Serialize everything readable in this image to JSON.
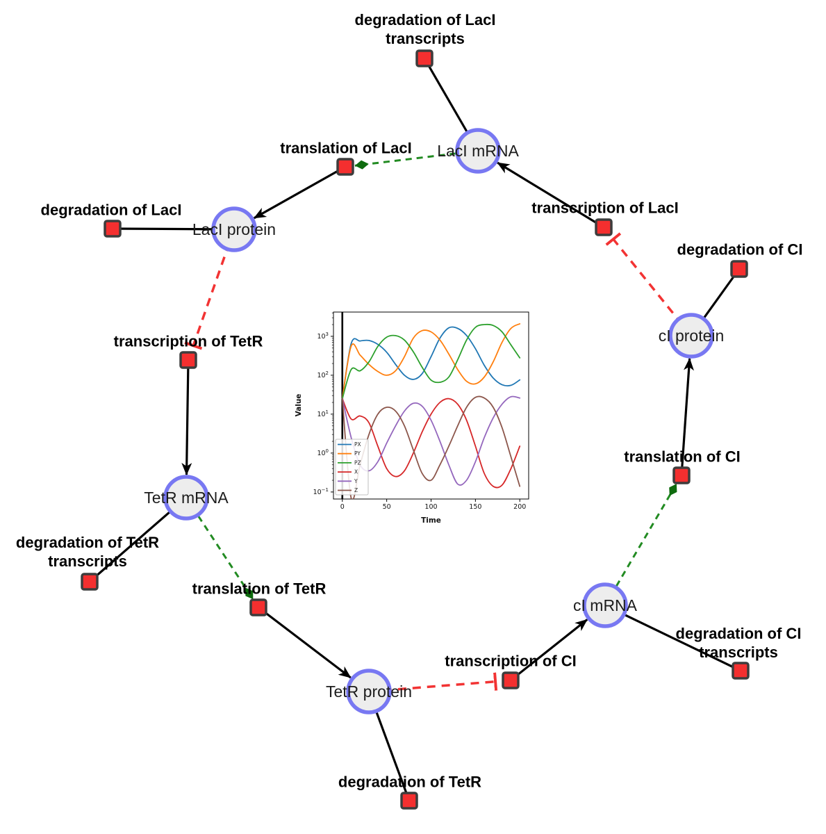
{
  "diagram": {
    "colors": {
      "species_fill": "#ededed",
      "species_stroke": "#7878f2",
      "reaction_fill": "#f42f2f",
      "reaction_stroke": "#3d3d3d",
      "production_edge": "#000000",
      "consumption_edge": "#000000",
      "modifier_edge": "#228B22",
      "modifier_arrow": "#0e6b0e",
      "inhibition_edge": "#f23333"
    },
    "species_nodes": [
      {
        "id": "laci-mrna",
        "label": "LacI mRNA"
      },
      {
        "id": "laci-protein",
        "label": "LacI protein"
      },
      {
        "id": "tetr-mrna",
        "label": "TetR mRNA"
      },
      {
        "id": "tetr-protein",
        "label": "TetR protein"
      },
      {
        "id": "ci-mrna",
        "label": "cI mRNA"
      },
      {
        "id": "ci-protein",
        "label": "cI protein"
      }
    ],
    "reaction_nodes": [
      {
        "id": "deg-laci-tx",
        "label_lines": [
          "degradation of LacI",
          "transcripts"
        ]
      },
      {
        "id": "transl-laci",
        "label_lines": [
          "translation of LacI"
        ]
      },
      {
        "id": "txn-laci",
        "label_lines": [
          "transcription of LacI"
        ]
      },
      {
        "id": "deg-laci",
        "label_lines": [
          "degradation of LacI"
        ]
      },
      {
        "id": "deg-ci",
        "label_lines": [
          "degradation of CI"
        ]
      },
      {
        "id": "txn-tetr",
        "label_lines": [
          "transcription of TetR"
        ]
      },
      {
        "id": "deg-tetr-tx",
        "label_lines": [
          "degradation of TetR",
          "transcripts"
        ]
      },
      {
        "id": "transl-tetr",
        "label_lines": [
          "translation of TetR"
        ]
      },
      {
        "id": "transl-ci",
        "label_lines": [
          "translation of CI"
        ]
      },
      {
        "id": "txn-ci",
        "label_lines": [
          "transcription of CI"
        ]
      },
      {
        "id": "deg-ci-tx",
        "label_lines": [
          "degradation of CI",
          "transcripts"
        ]
      },
      {
        "id": "deg-tetr",
        "label_lines": [
          "degradation of TetR"
        ]
      }
    ],
    "edges": [
      {
        "source": "laci-mrna",
        "target": "deg-laci-tx",
        "type": "consumption"
      },
      {
        "source": "laci-mrna",
        "target": "transl-laci",
        "type": "modifier"
      },
      {
        "source": "transl-laci",
        "target": "laci-protein",
        "type": "production"
      },
      {
        "source": "laci-protein",
        "target": "deg-laci",
        "type": "consumption"
      },
      {
        "source": "laci-protein",
        "target": "txn-tetr",
        "type": "inhibition"
      },
      {
        "source": "txn-tetr",
        "target": "tetr-mrna",
        "type": "production"
      },
      {
        "source": "tetr-mrna",
        "target": "deg-tetr-tx",
        "type": "consumption"
      },
      {
        "source": "tetr-mrna",
        "target": "transl-tetr",
        "type": "modifier"
      },
      {
        "source": "transl-tetr",
        "target": "tetr-protein",
        "type": "production"
      },
      {
        "source": "tetr-protein",
        "target": "deg-tetr",
        "type": "consumption"
      },
      {
        "source": "tetr-protein",
        "target": "txn-ci",
        "type": "inhibition"
      },
      {
        "source": "txn-ci",
        "target": "ci-mrna",
        "type": "production"
      },
      {
        "source": "ci-mrna",
        "target": "deg-ci-tx",
        "type": "consumption"
      },
      {
        "source": "ci-mrna",
        "target": "transl-ci",
        "type": "modifier"
      },
      {
        "source": "transl-ci",
        "target": "ci-protein",
        "type": "production"
      },
      {
        "source": "ci-protein",
        "target": "deg-ci",
        "type": "consumption"
      },
      {
        "source": "ci-protein",
        "target": "txn-laci",
        "type": "inhibition"
      },
      {
        "source": "txn-laci",
        "target": "laci-mrna",
        "type": "production"
      }
    ]
  },
  "chart_data": {
    "type": "line",
    "xlabel": "Time",
    "ylabel": "Value",
    "yscale": "log",
    "xlim": [
      -10,
      210
    ],
    "ylim": [
      0.066,
      4200
    ],
    "x_ticks": [
      0,
      50,
      100,
      150,
      200
    ],
    "y_ticks_log": [
      -1,
      0,
      1,
      2,
      3
    ],
    "vline_x": 0,
    "legend_position": "lower left",
    "grid": false,
    "x": [
      0,
      10,
      20,
      30,
      40,
      50,
      60,
      70,
      80,
      90,
      100,
      110,
      120,
      130,
      140,
      150,
      160,
      170,
      180,
      190,
      200
    ],
    "series": [
      {
        "name": "PX",
        "color": "#1f77b4",
        "values": [
          25,
          650,
          760,
          780,
          620,
          390,
          190,
          100,
          78,
          110,
          300,
          900,
          1650,
          1600,
          1050,
          480,
          180,
          85,
          57,
          55,
          76
        ]
      },
      {
        "name": "PY",
        "color": "#ff7f0e",
        "values": [
          25,
          560,
          330,
          190,
          125,
          100,
          130,
          300,
          900,
          1400,
          1300,
          800,
          350,
          140,
          70,
          60,
          90,
          220,
          700,
          1600,
          2100
        ]
      },
      {
        "name": "PZ",
        "color": "#2ca02c",
        "values": [
          25,
          140,
          130,
          220,
          550,
          950,
          1040,
          800,
          400,
          160,
          75,
          66,
          90,
          250,
          800,
          1700,
          2000,
          1900,
          1300,
          600,
          280
        ]
      },
      {
        "name": "X",
        "color": "#d62728",
        "values": [
          25,
          7.5,
          9,
          6,
          1.5,
          0.4,
          0.25,
          0.35,
          1,
          3.5,
          10,
          20,
          25,
          18,
          7,
          1.5,
          0.3,
          0.14,
          0.15,
          0.4,
          1.5
        ]
      },
      {
        "name": "Y",
        "color": "#9467bd",
        "values": [
          25,
          2.5,
          0.5,
          0.35,
          0.6,
          1.8,
          5,
          12,
          19,
          16,
          7,
          2,
          0.5,
          0.16,
          0.2,
          0.6,
          2.5,
          8,
          18,
          28,
          26
        ]
      },
      {
        "name": "Z",
        "color": "#8c564b",
        "values": [
          25,
          0.07,
          0.5,
          3,
          10,
          15,
          12,
          5,
          1.2,
          0.3,
          0.2,
          0.5,
          1.5,
          5,
          15,
          27,
          26,
          15,
          4.5,
          0.8,
          0.14
        ]
      }
    ]
  }
}
